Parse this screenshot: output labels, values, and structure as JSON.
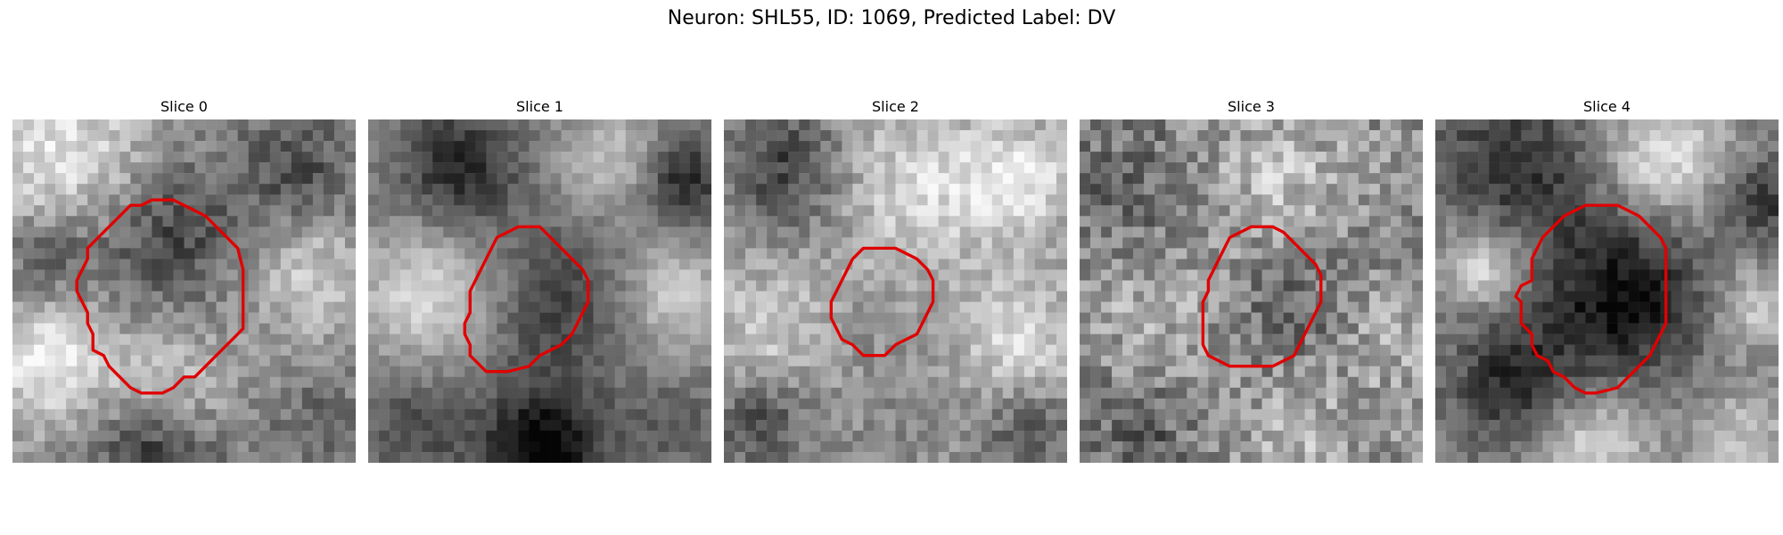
{
  "figure": {
    "title": "Neuron: SHL55, ID: 1069, Predicted Label: DV",
    "contour_color": "#e00000"
  },
  "slices": [
    {
      "title": "Slice 0"
    },
    {
      "title": "Slice 1"
    },
    {
      "title": "Slice 2"
    },
    {
      "title": "Slice 3"
    },
    {
      "title": "Slice 4"
    }
  ]
}
